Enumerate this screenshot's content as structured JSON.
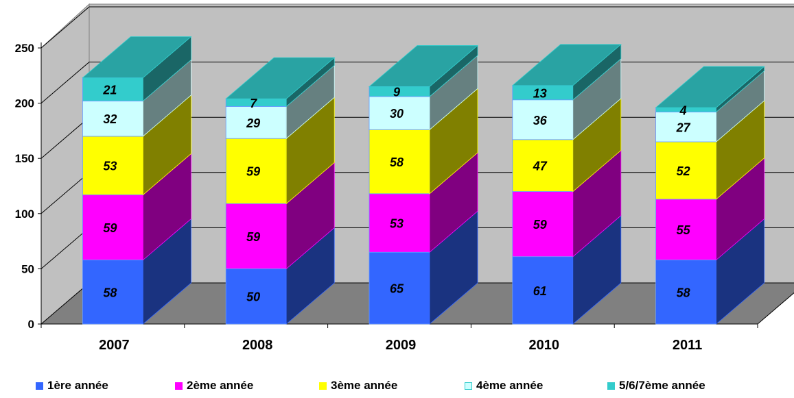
{
  "chart_data": {
    "type": "bar",
    "stacked": true,
    "three_d": true,
    "categories": [
      "2007",
      "2008",
      "2009",
      "2010",
      "2011"
    ],
    "series": [
      {
        "name": "1ère année",
        "values": [
          58,
          50,
          65,
          61,
          58
        ],
        "color": "#3366ff",
        "side": "#1a3380",
        "top": "#2952cc"
      },
      {
        "name": "2ème année",
        "values": [
          59,
          59,
          53,
          59,
          55
        ],
        "color": "#ff00ff",
        "side": "#800080",
        "top": "#cc00cc"
      },
      {
        "name": "3ème année",
        "values": [
          53,
          59,
          58,
          47,
          52
        ],
        "color": "#ffff00",
        "side": "#808000",
        "top": "#cccc00"
      },
      {
        "name": "4ème année",
        "values": [
          32,
          29,
          30,
          36,
          27
        ],
        "color": "#ccffff",
        "side": "#668080",
        "top": "#a3cccc"
      },
      {
        "name": "5/6/7ème année",
        "values": [
          21,
          7,
          9,
          13,
          4
        ],
        "color": "#33cccc",
        "side": "#1a6666",
        "top": "#29a3a3"
      }
    ],
    "y_ticks": [
      "0",
      "50",
      "100",
      "150",
      "200",
      "250"
    ],
    "ylim": [
      0,
      250
    ],
    "grid": true,
    "legend_position": "bottom",
    "title": "",
    "xlabel": "",
    "ylabel": ""
  }
}
